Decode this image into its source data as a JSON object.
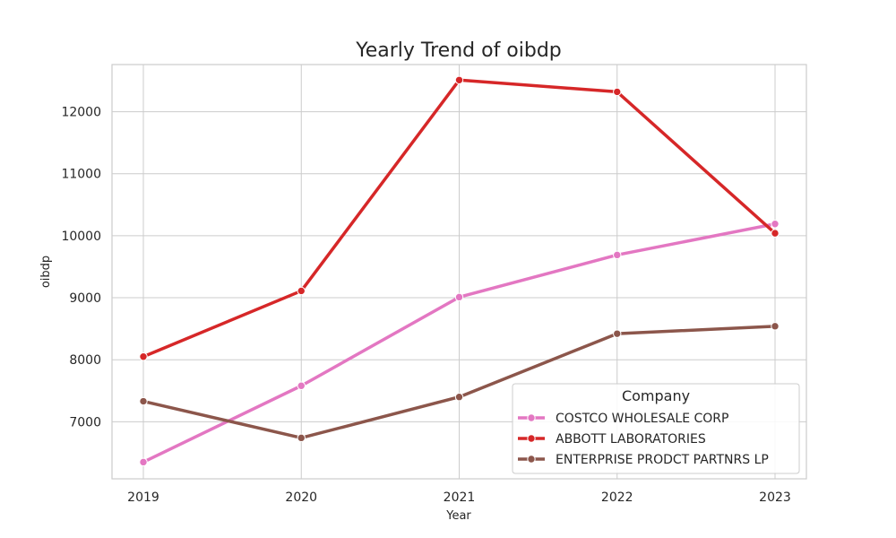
{
  "chart_data": {
    "type": "line",
    "title": "Yearly Trend of oibdp",
    "xlabel": "Year",
    "ylabel": "oibdp",
    "x": [
      "2019",
      "2020",
      "2021",
      "2022",
      "2023"
    ],
    "yticks": [
      7000,
      8000,
      9000,
      10000,
      11000,
      12000
    ],
    "ylim": [
      6080,
      12760
    ],
    "grid": true,
    "legend": {
      "title": "Company",
      "placement": "lower-right"
    },
    "series": [
      {
        "name": "COSTCO WHOLESALE CORP",
        "color": "#e377c2",
        "values": [
          6350,
          7580,
          9010,
          9690,
          10190
        ]
      },
      {
        "name": "ABBOTT LABORATORIES",
        "color": "#d62728",
        "values": [
          8050,
          9110,
          12510,
          12320,
          10040
        ]
      },
      {
        "name": "ENTERPRISE PRODCT PARTNRS LP",
        "color": "#8c564b",
        "values": [
          7330,
          6740,
          7400,
          8420,
          8540
        ]
      }
    ]
  }
}
